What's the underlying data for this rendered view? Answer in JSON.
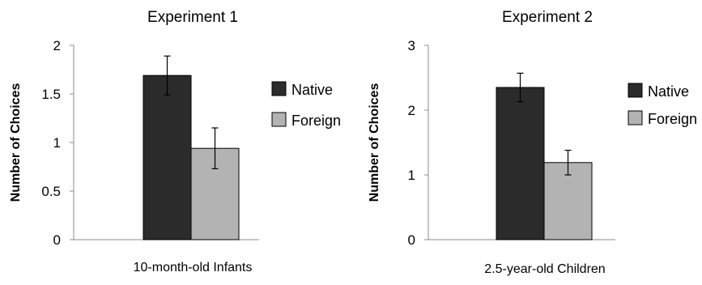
{
  "chart_data": [
    {
      "type": "bar",
      "title": "Experiment 1",
      "xlabel": "10-month-old Infants",
      "ylabel": "Number of Choices",
      "ylim": [
        0,
        2
      ],
      "yticks": [
        "0",
        "0.5",
        "1",
        "1.5",
        "2"
      ],
      "series": [
        {
          "name": "Native",
          "values": [
            1.69
          ],
          "error": [
            0.2
          ],
          "color": "#2b2b2b"
        },
        {
          "name": "Foreign",
          "values": [
            0.94
          ],
          "error": [
            0.21
          ],
          "color": "#b3b3b3"
        }
      ],
      "legend": "right",
      "grid": false
    },
    {
      "type": "bar",
      "title": "Experiment 2",
      "xlabel": "2.5-year-old Children",
      "ylabel": "Number of Choices",
      "ylim": [
        0,
        3
      ],
      "yticks": [
        "0",
        "1",
        "2",
        "3"
      ],
      "series": [
        {
          "name": "Native",
          "values": [
            2.35
          ],
          "error": [
            0.22
          ],
          "color": "#2b2b2b"
        },
        {
          "name": "Foreign",
          "values": [
            1.19
          ],
          "error": [
            0.19
          ],
          "color": "#b3b3b3"
        }
      ],
      "legend": "right",
      "grid": false
    }
  ]
}
